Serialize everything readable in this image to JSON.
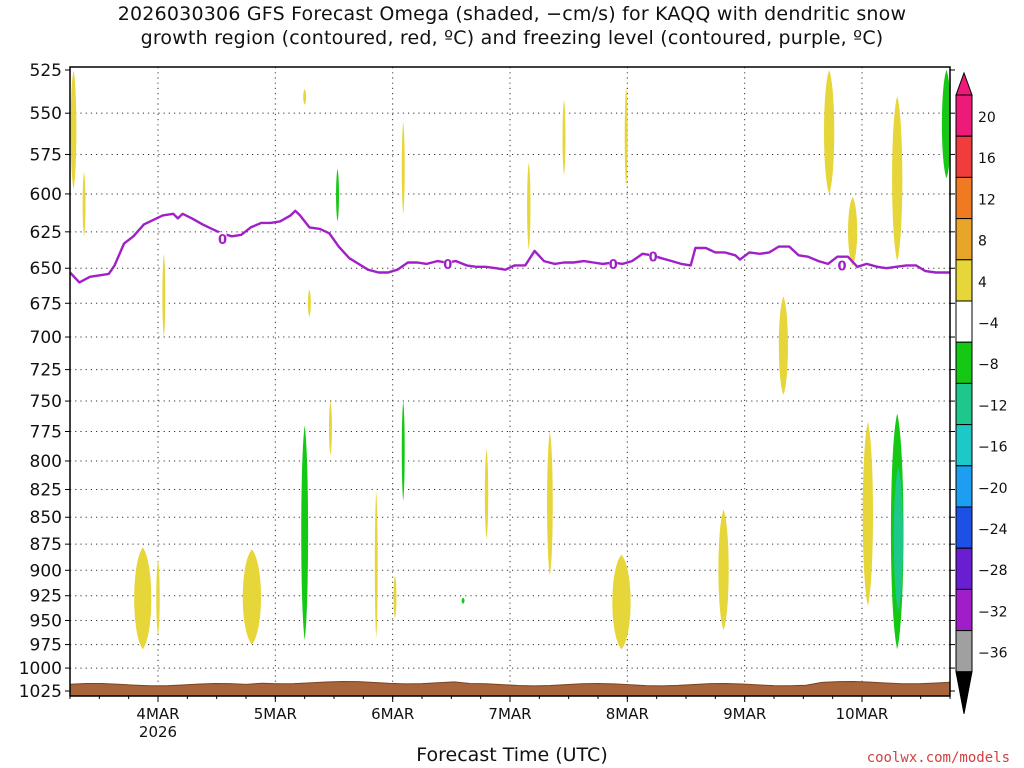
{
  "title_line1": "2026030306 GFS Forecast Omega (shaded, −cm/s) for KAQQ with dendritic snow",
  "title_line2": "growth region (contoured, red, ºC) and freezing level (contoured, purple, ºC)",
  "credit": "coolwx.com/models",
  "chart_data": {
    "type": "heatmap",
    "title": "2026030306 GFS Forecast Omega (shaded, −cm/s) for KAQQ with dendritic snow growth region (contoured, red, ºC) and freezing level (contoured, purple, ºC)",
    "xlabel": "Forecast Time (UTC)",
    "ylabel": "",
    "x_unit": "days (March 2026, UTC)",
    "xlim": [
      3.25,
      10.75
    ],
    "y_levels": [
      525,
      550,
      575,
      600,
      625,
      650,
      675,
      700,
      725,
      750,
      775,
      800,
      825,
      850,
      875,
      900,
      925,
      950,
      975,
      1000,
      1025
    ],
    "y_scale": "log",
    "ylim": [
      1025,
      525
    ],
    "grid": true,
    "x_ticks": [
      {
        "x": 4,
        "label": "4MAR",
        "sublabel": "2026"
      },
      {
        "x": 5,
        "label": "5MAR",
        "sublabel": ""
      },
      {
        "x": 6,
        "label": "6MAR",
        "sublabel": ""
      },
      {
        "x": 7,
        "label": "7MAR",
        "sublabel": ""
      },
      {
        "x": 8,
        "label": "8MAR",
        "sublabel": ""
      },
      {
        "x": 9,
        "label": "9MAR",
        "sublabel": ""
      },
      {
        "x": 10,
        "label": "10MAR",
        "sublabel": ""
      }
    ],
    "colorbar": {
      "labels": [
        "20",
        "16",
        "12",
        "8",
        "4",
        "−4",
        "−8",
        "−12",
        "−16",
        "−20",
        "−24",
        "−28",
        "−32",
        "−36"
      ],
      "bins": [
        {
          "lo": 20,
          "hi": 24,
          "color": "#ee1a7a"
        },
        {
          "lo": 16,
          "hi": 20,
          "color": "#f03c3c"
        },
        {
          "lo": 12,
          "hi": 16,
          "color": "#f07a22"
        },
        {
          "lo": 8,
          "hi": 12,
          "color": "#e8a628"
        },
        {
          "lo": 4,
          "hi": 8,
          "color": "#e6d63a"
        },
        {
          "lo": -4,
          "hi": 4,
          "color": "#ffffff"
        },
        {
          "lo": -8,
          "hi": -4,
          "color": "#14c814"
        },
        {
          "lo": -12,
          "hi": -8,
          "color": "#1ec88c"
        },
        {
          "lo": -16,
          "hi": -12,
          "color": "#1cc8c8"
        },
        {
          "lo": -20,
          "hi": -16,
          "color": "#1e9ef0"
        },
        {
          "lo": -24,
          "hi": -20,
          "color": "#1e50e6"
        },
        {
          "lo": -28,
          "hi": -24,
          "color": "#6a1ed2"
        },
        {
          "lo": -32,
          "hi": -28,
          "color": "#a01ec8"
        },
        {
          "lo": -36,
          "hi": -32,
          "color": "#a0a0a0"
        }
      ],
      "over_color": "#ee1a7a",
      "under_color": "#000000"
    },
    "freezing_level": {
      "label": "0",
      "color": "#a020c8",
      "points": [
        [
          3.25,
          653
        ],
        [
          3.33,
          660
        ],
        [
          3.42,
          656
        ],
        [
          3.58,
          654
        ],
        [
          3.63,
          648
        ],
        [
          3.71,
          633
        ],
        [
          3.79,
          628
        ],
        [
          3.88,
          620
        ],
        [
          3.96,
          617
        ],
        [
          4.04,
          614
        ],
        [
          4.13,
          613
        ],
        [
          4.17,
          616
        ],
        [
          4.21,
          613
        ],
        [
          4.29,
          616
        ],
        [
          4.38,
          620
        ],
        [
          4.46,
          623
        ],
        [
          4.54,
          626
        ],
        [
          4.63,
          628
        ],
        [
          4.71,
          627
        ],
        [
          4.79,
          622
        ],
        [
          4.88,
          619
        ],
        [
          4.96,
          619
        ],
        [
          5.04,
          618
        ],
        [
          5.13,
          614
        ],
        [
          5.17,
          611
        ],
        [
          5.21,
          614
        ],
        [
          5.29,
          622
        ],
        [
          5.38,
          623
        ],
        [
          5.46,
          626
        ],
        [
          5.54,
          635
        ],
        [
          5.63,
          643
        ],
        [
          5.71,
          647
        ],
        [
          5.79,
          651
        ],
        [
          5.88,
          653
        ],
        [
          5.96,
          653
        ],
        [
          6.04,
          651
        ],
        [
          6.13,
          646
        ],
        [
          6.21,
          646
        ],
        [
          6.29,
          647
        ],
        [
          6.38,
          645
        ],
        [
          6.46,
          646
        ],
        [
          6.54,
          645
        ],
        [
          6.63,
          648
        ],
        [
          6.71,
          649
        ],
        [
          6.79,
          649
        ],
        [
          6.88,
          650
        ],
        [
          6.96,
          651
        ],
        [
          7.04,
          648
        ],
        [
          7.13,
          648
        ],
        [
          7.21,
          638
        ],
        [
          7.29,
          645
        ],
        [
          7.38,
          647
        ],
        [
          7.46,
          646
        ],
        [
          7.54,
          646
        ],
        [
          7.63,
          645
        ],
        [
          7.71,
          646
        ],
        [
          7.79,
          647
        ],
        [
          7.88,
          646
        ],
        [
          7.96,
          647
        ],
        [
          8.04,
          645
        ],
        [
          8.13,
          640
        ],
        [
          8.21,
          641
        ],
        [
          8.29,
          643
        ],
        [
          8.38,
          645
        ],
        [
          8.46,
          647
        ],
        [
          8.54,
          648
        ],
        [
          8.58,
          636
        ],
        [
          8.67,
          636
        ],
        [
          8.75,
          639
        ],
        [
          8.83,
          639
        ],
        [
          8.92,
          641
        ],
        [
          8.96,
          644
        ],
        [
          9.04,
          639
        ],
        [
          9.13,
          640
        ],
        [
          9.21,
          639
        ],
        [
          9.29,
          635
        ],
        [
          9.38,
          635
        ],
        [
          9.46,
          641
        ],
        [
          9.54,
          642
        ],
        [
          9.63,
          645
        ],
        [
          9.71,
          647
        ],
        [
          9.79,
          642
        ],
        [
          9.88,
          642
        ],
        [
          9.96,
          649
        ],
        [
          10.04,
          647
        ],
        [
          10.13,
          649
        ],
        [
          10.21,
          650
        ],
        [
          10.29,
          649
        ],
        [
          10.38,
          648
        ],
        [
          10.46,
          648
        ],
        [
          10.54,
          652
        ],
        [
          10.63,
          653
        ],
        [
          10.71,
          653
        ],
        [
          10.75,
          653
        ]
      ]
    },
    "omega_regions": [
      {
        "x": 3.28,
        "p_top": 525,
        "p_bottom": 597,
        "width": 0.05,
        "color": "#e6d63a"
      },
      {
        "x": 3.37,
        "p_top": 586,
        "p_bottom": 628,
        "width": 0.02,
        "color": "#e6d63a"
      },
      {
        "x": 4.05,
        "p_top": 640,
        "p_bottom": 700,
        "width": 0.02,
        "color": "#e6d63a"
      },
      {
        "x": 3.87,
        "p_top": 878,
        "p_bottom": 980,
        "width": 0.15,
        "color": "#e6d63a"
      },
      {
        "x": 4.0,
        "p_top": 890,
        "p_bottom": 965,
        "width": 0.03,
        "color": "#e6d63a"
      },
      {
        "x": 4.8,
        "p_top": 880,
        "p_bottom": 975,
        "width": 0.16,
        "color": "#e6d63a"
      },
      {
        "x": 5.25,
        "p_top": 536,
        "p_bottom": 545,
        "width": 0.015,
        "color": "#e6d63a"
      },
      {
        "x": 5.29,
        "p_top": 665,
        "p_bottom": 685,
        "width": 0.015,
        "color": "#e6d63a"
      },
      {
        "x": 5.25,
        "p_top": 770,
        "p_bottom": 970,
        "width": 0.06,
        "color": "#14c814"
      },
      {
        "x": 5.47,
        "p_top": 750,
        "p_bottom": 795,
        "width": 0.015,
        "color": "#e6d63a"
      },
      {
        "x": 5.53,
        "p_top": 584,
        "p_bottom": 618,
        "width": 0.01,
        "color": "#14c814"
      },
      {
        "x": 5.86,
        "p_top": 827,
        "p_bottom": 968,
        "width": 0.025,
        "color": "#e6d63a"
      },
      {
        "x": 6.02,
        "p_top": 905,
        "p_bottom": 948,
        "width": 0.015,
        "color": "#e6d63a"
      },
      {
        "x": 6.09,
        "p_top": 555,
        "p_bottom": 613,
        "width": 0.01,
        "color": "#e6d63a"
      },
      {
        "x": 6.09,
        "p_top": 750,
        "p_bottom": 835,
        "width": 0.02,
        "color": "#14c814"
      },
      {
        "x": 6.6,
        "p_top": 927,
        "p_bottom": 933,
        "width": 0.02,
        "color": "#14c814"
      },
      {
        "x": 6.8,
        "p_top": 790,
        "p_bottom": 870,
        "width": 0.03,
        "color": "#e6d63a"
      },
      {
        "x": 7.16,
        "p_top": 580,
        "p_bottom": 637,
        "width": 0.03,
        "color": "#e6d63a"
      },
      {
        "x": 7.34,
        "p_top": 775,
        "p_bottom": 905,
        "width": 0.05,
        "color": "#e6d63a"
      },
      {
        "x": 7.46,
        "p_top": 542,
        "p_bottom": 588,
        "width": 0.01,
        "color": "#e6d63a"
      },
      {
        "x": 7.95,
        "p_top": 885,
        "p_bottom": 980,
        "width": 0.16,
        "color": "#e6d63a"
      },
      {
        "x": 7.99,
        "p_top": 535,
        "p_bottom": 595,
        "width": 0.015,
        "color": "#e6d63a"
      },
      {
        "x": 8.82,
        "p_top": 843,
        "p_bottom": 960,
        "width": 0.09,
        "color": "#e6d63a"
      },
      {
        "x": 9.33,
        "p_top": 670,
        "p_bottom": 745,
        "width": 0.08,
        "color": "#e6d63a"
      },
      {
        "x": 9.72,
        "p_top": 525,
        "p_bottom": 600,
        "width": 0.09,
        "color": "#e6d63a"
      },
      {
        "x": 9.92,
        "p_top": 602,
        "p_bottom": 648,
        "width": 0.08,
        "color": "#e6d63a"
      },
      {
        "x": 10.05,
        "p_top": 767,
        "p_bottom": 935,
        "width": 0.09,
        "color": "#e6d63a"
      },
      {
        "x": 10.3,
        "p_top": 540,
        "p_bottom": 645,
        "width": 0.09,
        "color": "#e6d63a"
      },
      {
        "x": 10.3,
        "p_top": 760,
        "p_bottom": 980,
        "width": 0.11,
        "color": "#14c814"
      },
      {
        "x": 10.31,
        "p_top": 805,
        "p_bottom": 940,
        "width": 0.08,
        "color": "#1ec88c"
      },
      {
        "x": 10.72,
        "p_top": 525,
        "p_bottom": 590,
        "width": 0.08,
        "color": "#14c814"
      }
    ],
    "terrain": {
      "color": "#a8643a",
      "p_top": 1018
    }
  }
}
